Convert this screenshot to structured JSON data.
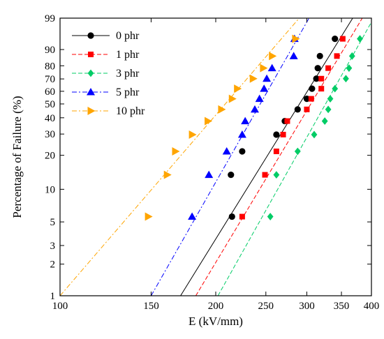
{
  "chart_data": {
    "type": "scatter",
    "title": "",
    "xlabel": "E (kV/mm)",
    "ylabel": "Percentage of Failure (%)",
    "x_scale": "log",
    "y_scale": "weibull-probability",
    "xlim": [
      100,
      400
    ],
    "ylim": [
      1,
      99
    ],
    "x_ticks": [
      100,
      150,
      200,
      250,
      300,
      350,
      400
    ],
    "y_ticks": [
      1,
      2,
      3,
      5,
      10,
      20,
      30,
      40,
      50,
      60,
      70,
      80,
      90,
      99
    ],
    "legend_position": "top-left",
    "series": [
      {
        "name": "0 phr",
        "color": "#000000",
        "marker": "circle",
        "line_style": "solid",
        "points": [
          [
            215,
            5.6
          ],
          [
            214,
            13.5
          ],
          [
            225,
            21.6
          ],
          [
            262,
            29.7
          ],
          [
            272,
            37.8
          ],
          [
            288,
            45.9
          ],
          [
            300,
            54.0
          ],
          [
            307,
            62.1
          ],
          [
            313,
            70.2
          ],
          [
            315,
            78.3
          ],
          [
            318,
            86.4
          ],
          [
            340,
            94.6
          ]
        ],
        "fit_line": [
          [
            171,
            1
          ],
          [
            368,
            99
          ]
        ]
      },
      {
        "name": "1 phr",
        "color": "#ff0000",
        "marker": "square",
        "line_style": "dashed",
        "points": [
          [
            225,
            5.6
          ],
          [
            249,
            13.5
          ],
          [
            262,
            21.6
          ],
          [
            270,
            29.7
          ],
          [
            275,
            37.8
          ],
          [
            300,
            45.9
          ],
          [
            306,
            54.0
          ],
          [
            320,
            62.1
          ],
          [
            320,
            70.2
          ],
          [
            330,
            78.3
          ],
          [
            343,
            86.4
          ],
          [
            352,
            94.6
          ]
        ],
        "fit_line": [
          [
            183,
            1
          ],
          [
            384,
            99
          ]
        ]
      },
      {
        "name": "3 phr",
        "color": "#00cc66",
        "marker": "diamond",
        "line_style": "dashed",
        "points": [
          [
            255,
            5.6
          ],
          [
            262,
            13.5
          ],
          [
            288,
            21.6
          ],
          [
            310,
            29.7
          ],
          [
            325,
            37.8
          ],
          [
            330,
            45.9
          ],
          [
            333,
            54.0
          ],
          [
            340,
            62.1
          ],
          [
            357,
            70.2
          ],
          [
            362,
            78.3
          ],
          [
            367,
            86.4
          ],
          [
            380,
            94.6
          ]
        ],
        "fit_line": [
          [
            202,
            1
          ],
          [
            404,
            99
          ]
        ]
      },
      {
        "name": "5 phr",
        "color": "#0000ff",
        "marker": "triangle-up",
        "line_style": "dashdot",
        "points": [
          [
            180,
            5.6
          ],
          [
            194,
            13.5
          ],
          [
            210,
            21.6
          ],
          [
            225,
            29.7
          ],
          [
            228,
            37.8
          ],
          [
            238,
            45.9
          ],
          [
            243,
            54.0
          ],
          [
            248,
            62.1
          ],
          [
            251,
            70.2
          ],
          [
            257,
            78.3
          ],
          [
            283,
            86.4
          ],
          [
            284,
            94.6
          ]
        ],
        "fit_line": [
          [
            150,
            1
          ],
          [
            303,
            99
          ]
        ]
      },
      {
        "name": "10 phr",
        "color": "#ffa500",
        "marker": "triangle-right",
        "line_style": "dashdot",
        "points": [
          [
            148,
            5.6
          ],
          [
            161,
            13.5
          ],
          [
            167,
            21.6
          ],
          [
            180,
            29.7
          ],
          [
            193,
            37.8
          ],
          [
            205,
            45.9
          ],
          [
            215,
            54.0
          ],
          [
            220,
            62.1
          ],
          [
            236,
            70.2
          ],
          [
            247,
            78.3
          ],
          [
            257,
            86.4
          ],
          [
            285,
            94.6
          ]
        ],
        "fit_line": [
          [
            100,
            1
          ],
          [
            290,
            99
          ]
        ]
      }
    ]
  }
}
